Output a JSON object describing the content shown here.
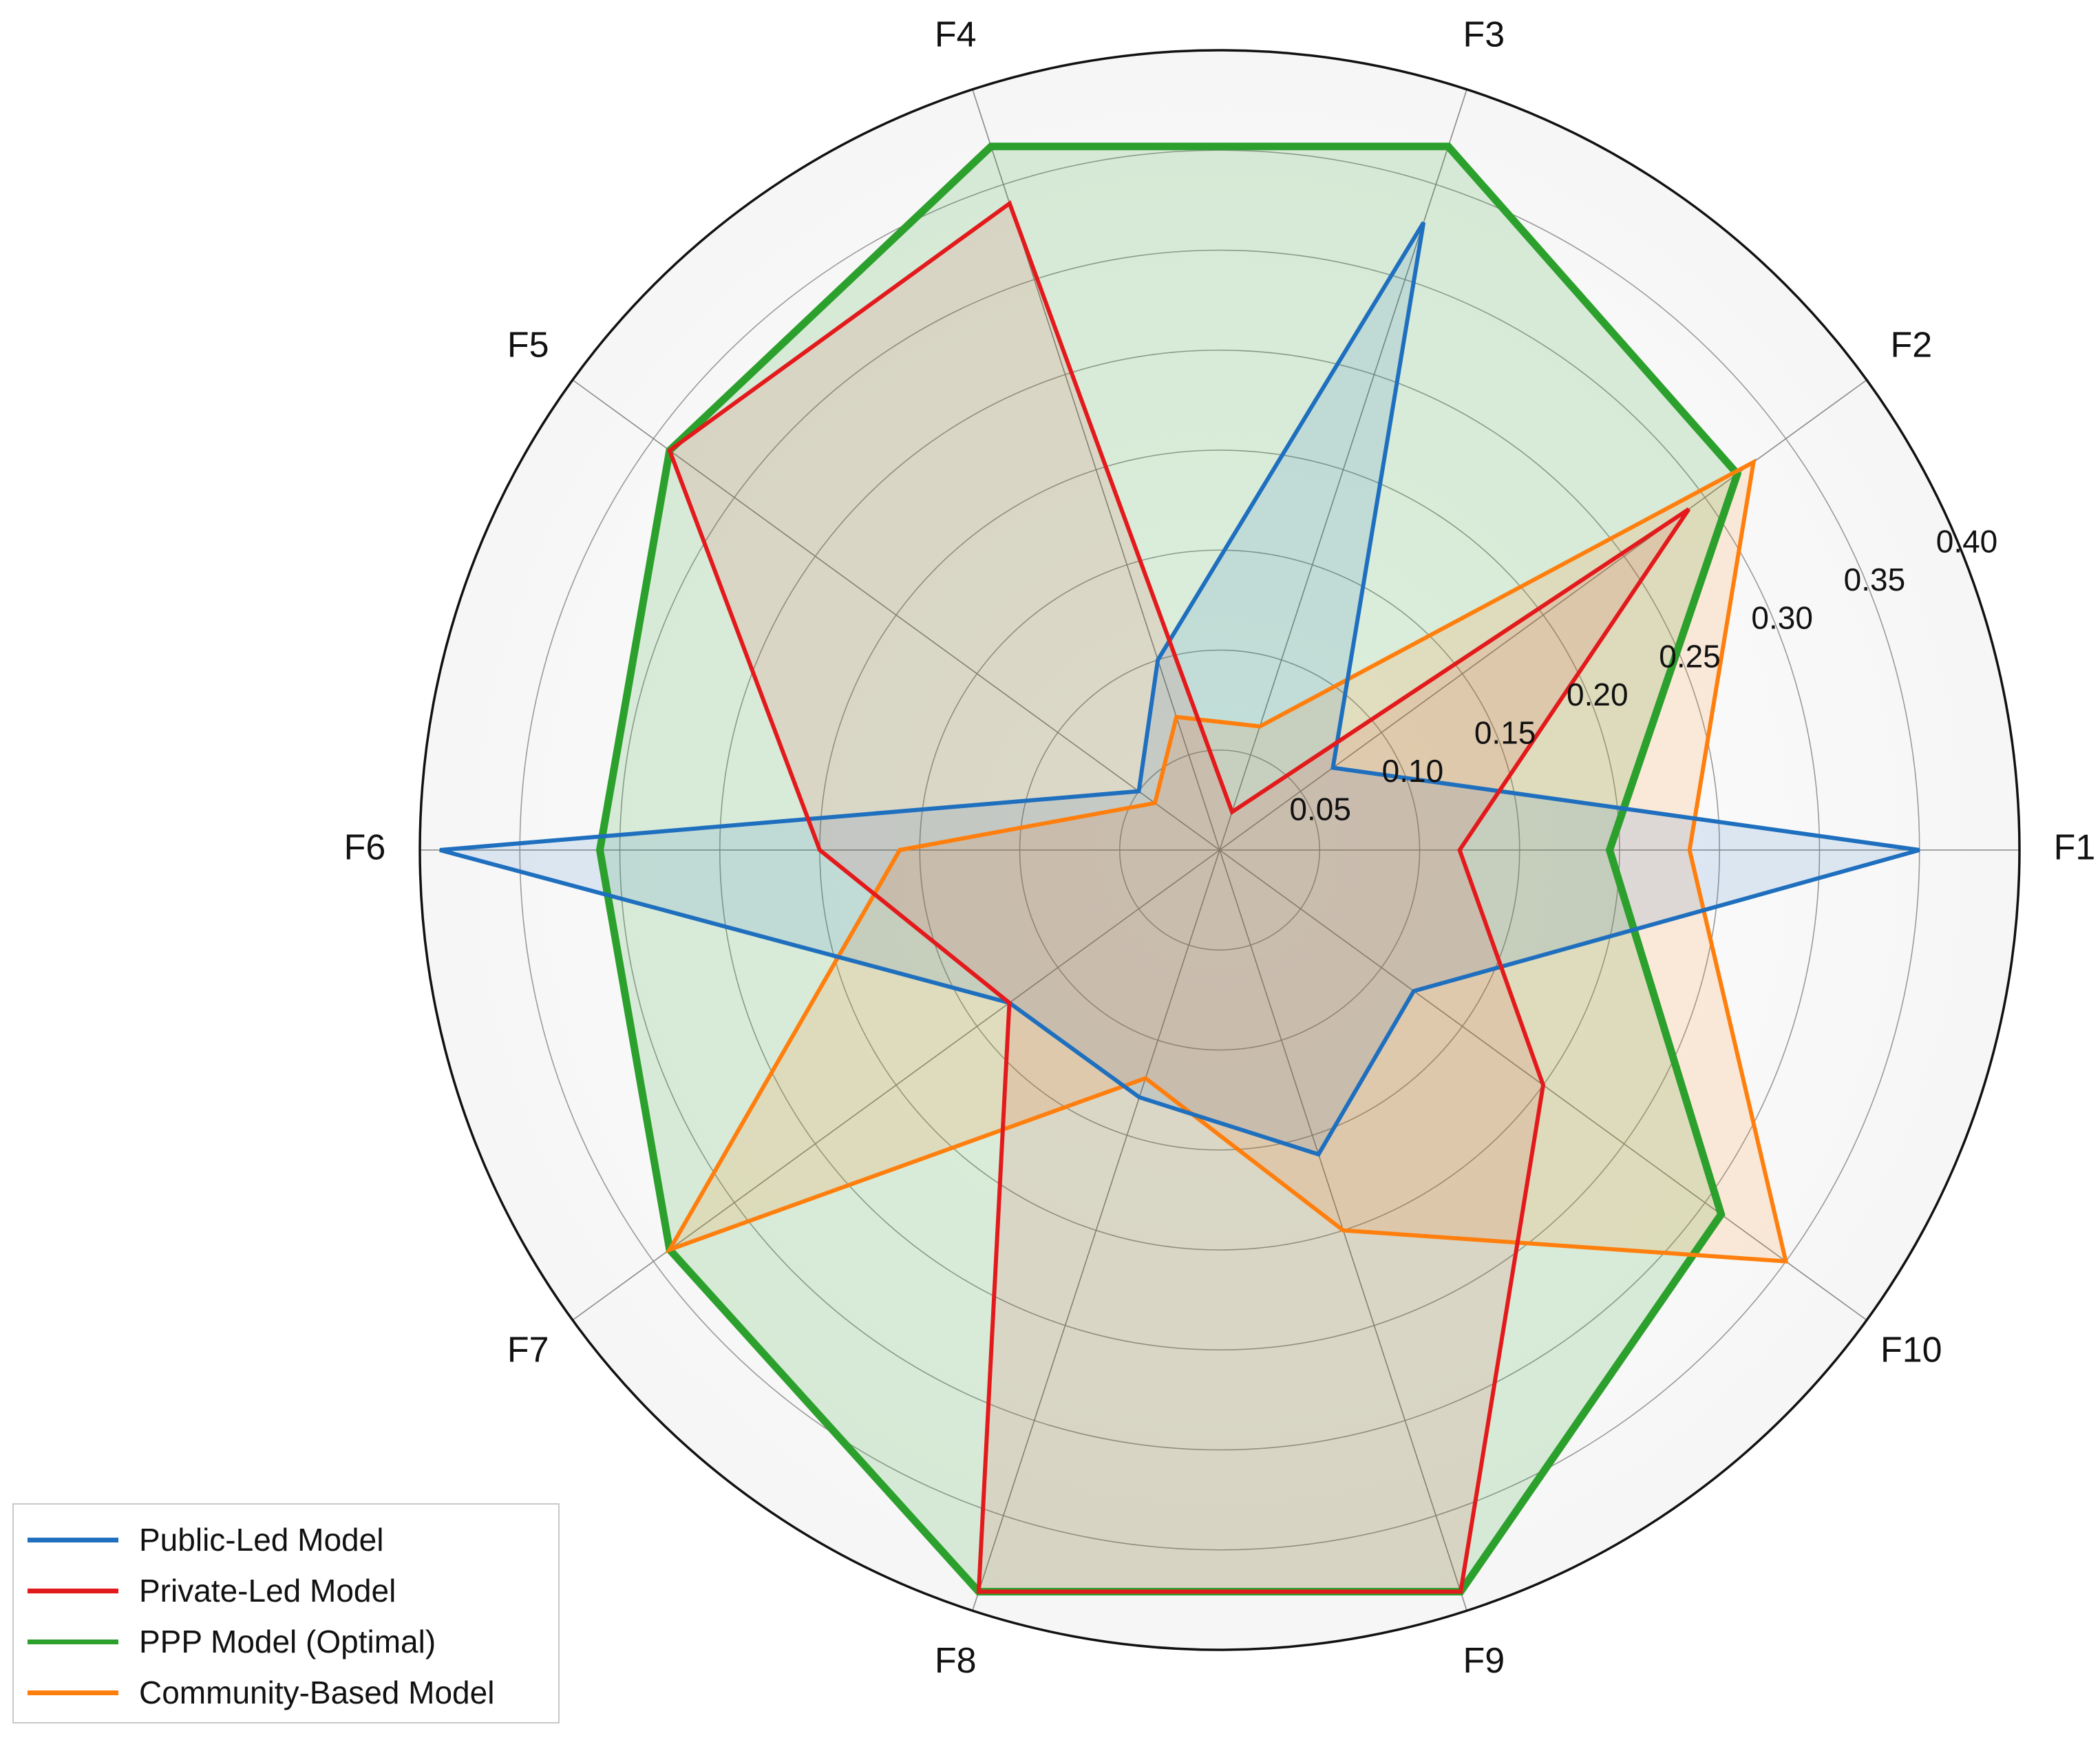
{
  "chart_data": {
    "type": "radar",
    "title": "",
    "axes": [
      "F1",
      "F2",
      "F3",
      "F4",
      "F5",
      "F6",
      "F7",
      "F8",
      "F9",
      "F10"
    ],
    "radial_ticks": [
      "0.05",
      "0.10",
      "0.15",
      "0.20",
      "0.25",
      "0.30",
      "0.35",
      "0.40"
    ],
    "rlim": [
      0,
      0.4
    ],
    "grid": true,
    "legend_position": "bottom-left",
    "series": [
      {
        "name": "Public-Led Model",
        "color": "#1f6fbf",
        "values": [
          0.35,
          0.07,
          0.33,
          0.1,
          0.05,
          0.39,
          0.13,
          0.13,
          0.16,
          0.12
        ]
      },
      {
        "name": "Private-Led Model",
        "color": "#e31a1c",
        "values": [
          0.12,
          0.29,
          0.02,
          0.34,
          0.34,
          0.2,
          0.13,
          0.39,
          0.39,
          0.2
        ]
      },
      {
        "name": "PPP Model (Optimal)",
        "color": "#2ca02c",
        "values": [
          0.195,
          0.32,
          0.37,
          0.37,
          0.34,
          0.31,
          0.34,
          0.39,
          0.39,
          0.31
        ]
      },
      {
        "name": "Community-Based Model",
        "color": "#ff7f0e",
        "values": [
          0.235,
          0.33,
          0.065,
          0.07,
          0.04,
          0.16,
          0.34,
          0.12,
          0.2,
          0.35
        ]
      }
    ]
  }
}
